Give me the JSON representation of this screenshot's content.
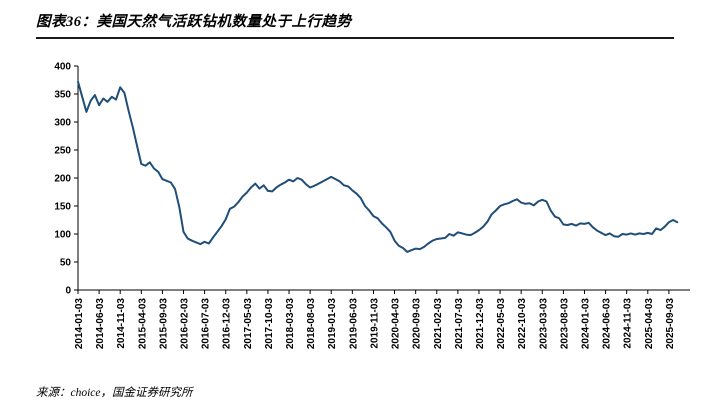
{
  "page": {
    "title": "图表36：美国天然气活跃钻机数量处于上行趋势",
    "source": "来源：choice，国金证券研究所"
  },
  "colors": {
    "line": "#1F4E79",
    "axis": "#000000",
    "text": "#000000",
    "divider": "#1A1A1A",
    "background": "#FFFFFF"
  },
  "chart_data": {
    "type": "line",
    "title": "美国天然气活跃钻机数量",
    "xlabel": "",
    "ylabel": "",
    "ylim": [
      0,
      400
    ],
    "ytick_step": 50,
    "grid": false,
    "legend": null,
    "xtick_labels": [
      "2014-01-03",
      "2014-06-03",
      "2014-11-03",
      "2015-04-03",
      "2015-09-03",
      "2016-02-03",
      "2016-07-03",
      "2016-12-03",
      "2017-05-03",
      "2017-10-03",
      "2018-03-03",
      "2018-08-03",
      "2019-01-03",
      "2019-06-03",
      "2019-11-03",
      "2020-04-03",
      "2020-09-03",
      "2021-02-03",
      "2021-07-03",
      "2021-12-03",
      "2022-05-03",
      "2022-10-03",
      "2023-03-03",
      "2023-08-03",
      "2024-01-03",
      "2024-06-03",
      "2024-11-03",
      "2025-04-03",
      "2025-09-03"
    ],
    "x": [
      "2014-01",
      "2014-02",
      "2014-03",
      "2014-04",
      "2014-05",
      "2014-06",
      "2014-07",
      "2014-08",
      "2014-09",
      "2014-10",
      "2014-11",
      "2014-12",
      "2015-01",
      "2015-02",
      "2015-03",
      "2015-04",
      "2015-05",
      "2015-06",
      "2015-07",
      "2015-08",
      "2015-09",
      "2015-10",
      "2015-11",
      "2015-12",
      "2016-01",
      "2016-02",
      "2016-03",
      "2016-04",
      "2016-05",
      "2016-06",
      "2016-07",
      "2016-08",
      "2016-09",
      "2016-10",
      "2016-11",
      "2016-12",
      "2017-01",
      "2017-02",
      "2017-03",
      "2017-04",
      "2017-05",
      "2017-06",
      "2017-07",
      "2017-08",
      "2017-09",
      "2017-10",
      "2017-11",
      "2017-12",
      "2018-01",
      "2018-02",
      "2018-03",
      "2018-04",
      "2018-05",
      "2018-06",
      "2018-07",
      "2018-08",
      "2018-09",
      "2018-10",
      "2018-11",
      "2018-12",
      "2019-01",
      "2019-02",
      "2019-03",
      "2019-04",
      "2019-05",
      "2019-06",
      "2019-07",
      "2019-08",
      "2019-09",
      "2019-10",
      "2019-11",
      "2019-12",
      "2020-01",
      "2020-02",
      "2020-03",
      "2020-04",
      "2020-05",
      "2020-06",
      "2020-07",
      "2020-08",
      "2020-09",
      "2020-10",
      "2020-11",
      "2020-12",
      "2021-01",
      "2021-02",
      "2021-03",
      "2021-04",
      "2021-05",
      "2021-06",
      "2021-07",
      "2021-08",
      "2021-09",
      "2021-10",
      "2021-11",
      "2021-12",
      "2022-01",
      "2022-02",
      "2022-03",
      "2022-04",
      "2022-05",
      "2022-06",
      "2022-07",
      "2022-08",
      "2022-09",
      "2022-10",
      "2022-11",
      "2022-12",
      "2023-01",
      "2023-02",
      "2023-03",
      "2023-04",
      "2023-05",
      "2023-06",
      "2023-07",
      "2023-08",
      "2023-09",
      "2023-10",
      "2023-11",
      "2023-12",
      "2024-01",
      "2024-02",
      "2024-03",
      "2024-04",
      "2024-05",
      "2024-06",
      "2024-07",
      "2024-08",
      "2024-09",
      "2024-10",
      "2024-11",
      "2024-12",
      "2025-01",
      "2025-02",
      "2025-03",
      "2025-04",
      "2025-05",
      "2025-06",
      "2025-07",
      "2025-08",
      "2025-09",
      "2025-10",
      "2025-11"
    ],
    "values": [
      372,
      345,
      318,
      338,
      348,
      330,
      342,
      336,
      345,
      340,
      362,
      352,
      320,
      290,
      257,
      225,
      222,
      228,
      217,
      211,
      198,
      195,
      192,
      180,
      148,
      104,
      92,
      88,
      85,
      82,
      86,
      83,
      94,
      104,
      114,
      126,
      145,
      149,
      157,
      167,
      174,
      183,
      190,
      181,
      187,
      177,
      176,
      183,
      188,
      192,
      197,
      194,
      200,
      197,
      189,
      183,
      186,
      190,
      194,
      198,
      202,
      198,
      194,
      187,
      185,
      178,
      172,
      164,
      150,
      142,
      132,
      128,
      119,
      112,
      104,
      88,
      79,
      75,
      68,
      71,
      74,
      73,
      77,
      83,
      88,
      91,
      92,
      93,
      100,
      97,
      103,
      101,
      99,
      98,
      102,
      107,
      113,
      122,
      135,
      142,
      150,
      153,
      155,
      159,
      162,
      156,
      154,
      155,
      151,
      158,
      161,
      158,
      142,
      131,
      128,
      117,
      116,
      118,
      115,
      119,
      118,
      120,
      112,
      106,
      102,
      98,
      101,
      96,
      95,
      100,
      99,
      101,
      99,
      101,
      100,
      102,
      100,
      110,
      107,
      113,
      121,
      125,
      121
    ]
  }
}
